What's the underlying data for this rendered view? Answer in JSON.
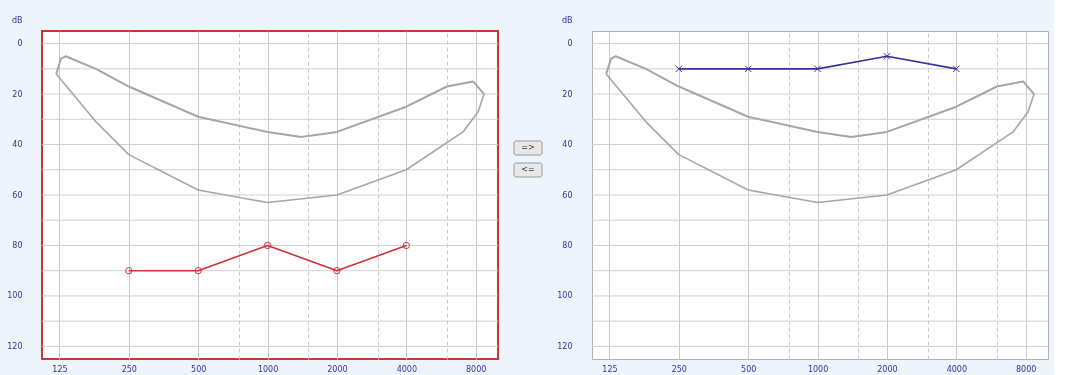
{
  "chart_data": [
    {
      "type": "line",
      "ylabel": "dB",
      "log": "x",
      "grid": true,
      "xlim": [
        105,
        10000
      ],
      "xticks": [
        125,
        250,
        500,
        {
          "value": 750,
          "label": null
        },
        1000,
        {
          "value": 1500,
          "label": null
        },
        2000,
        {
          "value": 3000,
          "label": null
        },
        4000,
        {
          "value": 6000,
          "label": null
        },
        8000
      ],
      "ylim": [
        125,
        -5
      ],
      "yticks": [
        0,
        {
          "value": 10,
          "label": null
        },
        20,
        {
          "value": 30,
          "label": null
        },
        40,
        {
          "value": 50,
          "label": null
        },
        60,
        {
          "value": 70,
          "label": null
        },
        80,
        {
          "value": 90,
          "label": null
        },
        100,
        {
          "value": 110,
          "label": null
        },
        120
      ],
      "annotations": [
        "=>",
        "<="
      ],
      "series": [
        {
          "color": "#a6a6a6",
          "marker": "none",
          "x": [
            121,
            127,
            133,
            180,
            250,
            500,
            1000,
            1400,
            2000,
            4000,
            6000,
            7800,
            8700
          ],
          "values": [
            12,
            6,
            5,
            10,
            17,
            29,
            35,
            37,
            35,
            25,
            17,
            15,
            20
          ]
        },
        {
          "color": "#a6a6a6",
          "marker": "none",
          "x": [
            121,
            140,
            180,
            250,
            500,
            1000,
            2000,
            4000,
            7050,
            8200,
            8700
          ],
          "values": [
            12,
            19,
            31,
            44,
            58,
            63,
            60,
            50,
            35,
            27,
            20
          ]
        },
        {
          "color": "#cc3333",
          "marker": "circle",
          "x": [
            250,
            500,
            1000,
            2000,
            4000
          ],
          "values": [
            90,
            90,
            80,
            90,
            80
          ]
        }
      ]
    },
    {
      "type": "line",
      "ylabel": "dB",
      "log": "x",
      "grid": true,
      "xlim": [
        105,
        10000
      ],
      "xticks": [
        125,
        250,
        500,
        {
          "value": 750,
          "label": null
        },
        1000,
        {
          "value": 1500,
          "label": null
        },
        2000,
        {
          "value": 3000,
          "label": null
        },
        4000,
        {
          "value": 6000,
          "label": null
        },
        8000
      ],
      "ylim": [
        125,
        -5
      ],
      "yticks": [
        0,
        {
          "value": 10,
          "label": null
        },
        20,
        {
          "value": 30,
          "label": null
        },
        40,
        {
          "value": 50,
          "label": null
        },
        60,
        {
          "value": 70,
          "label": null
        },
        80,
        {
          "value": 90,
          "label": null
        },
        100,
        {
          "value": 110,
          "label": null
        },
        120
      ],
      "series": [
        {
          "color": "#a6a6a6",
          "marker": "none",
          "x": [
            121,
            127,
            133,
            180,
            250,
            500,
            1000,
            1400,
            2000,
            4000,
            6000,
            7800,
            8700
          ],
          "values": [
            12,
            6,
            5,
            10,
            17,
            29,
            35,
            37,
            35,
            25,
            17,
            15,
            20
          ]
        },
        {
          "color": "#a6a6a6",
          "marker": "none",
          "x": [
            121,
            140,
            180,
            250,
            500,
            1000,
            2000,
            4000,
            7050,
            8200,
            8700
          ],
          "values": [
            12,
            19,
            31,
            44,
            58,
            63,
            60,
            50,
            35,
            27,
            20
          ]
        },
        {
          "color": "#333399",
          "marker": "cross",
          "x": [
            250,
            500,
            1000,
            2000,
            4000
          ],
          "values": [
            10,
            10,
            10,
            5,
            10
          ]
        }
      ]
    }
  ]
}
